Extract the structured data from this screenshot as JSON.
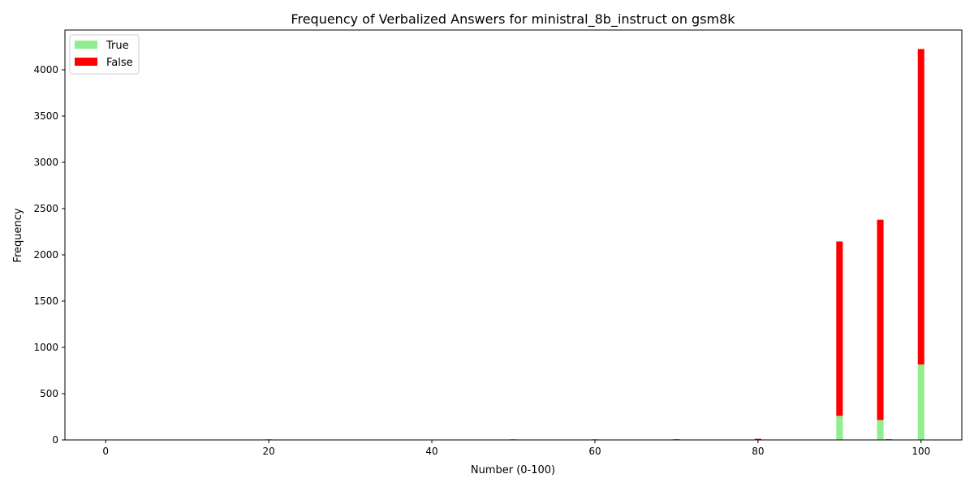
{
  "chart_data": {
    "type": "bar",
    "stacked": true,
    "title": "Frequency of Verbalized Answers for ministral_8b_instruct on gsm8k",
    "xlabel": "Number (0-100)",
    "ylabel": "Frequency",
    "xlim": [
      -5,
      105
    ],
    "ylim": [
      0,
      4430
    ],
    "bar_width": 0.8,
    "x_ticks": [
      0,
      20,
      40,
      60,
      80,
      100
    ],
    "y_ticks": [
      0,
      500,
      1000,
      1500,
      2000,
      2500,
      3000,
      3500,
      4000
    ],
    "grid": false,
    "legend_position": "top-left",
    "x": [
      0,
      20,
      50,
      60,
      70,
      75,
      80,
      90,
      95,
      96,
      100
    ],
    "series": [
      {
        "name": "True",
        "color": "#90ee90",
        "values": [
          3,
          1,
          1,
          1,
          1,
          4,
          2,
          260,
          215,
          1,
          815
        ]
      },
      {
        "name": "False",
        "color": "#ff0000",
        "values": [
          1,
          5,
          5,
          5,
          6,
          0,
          10,
          1885,
          2165,
          6,
          3410
        ]
      }
    ]
  }
}
